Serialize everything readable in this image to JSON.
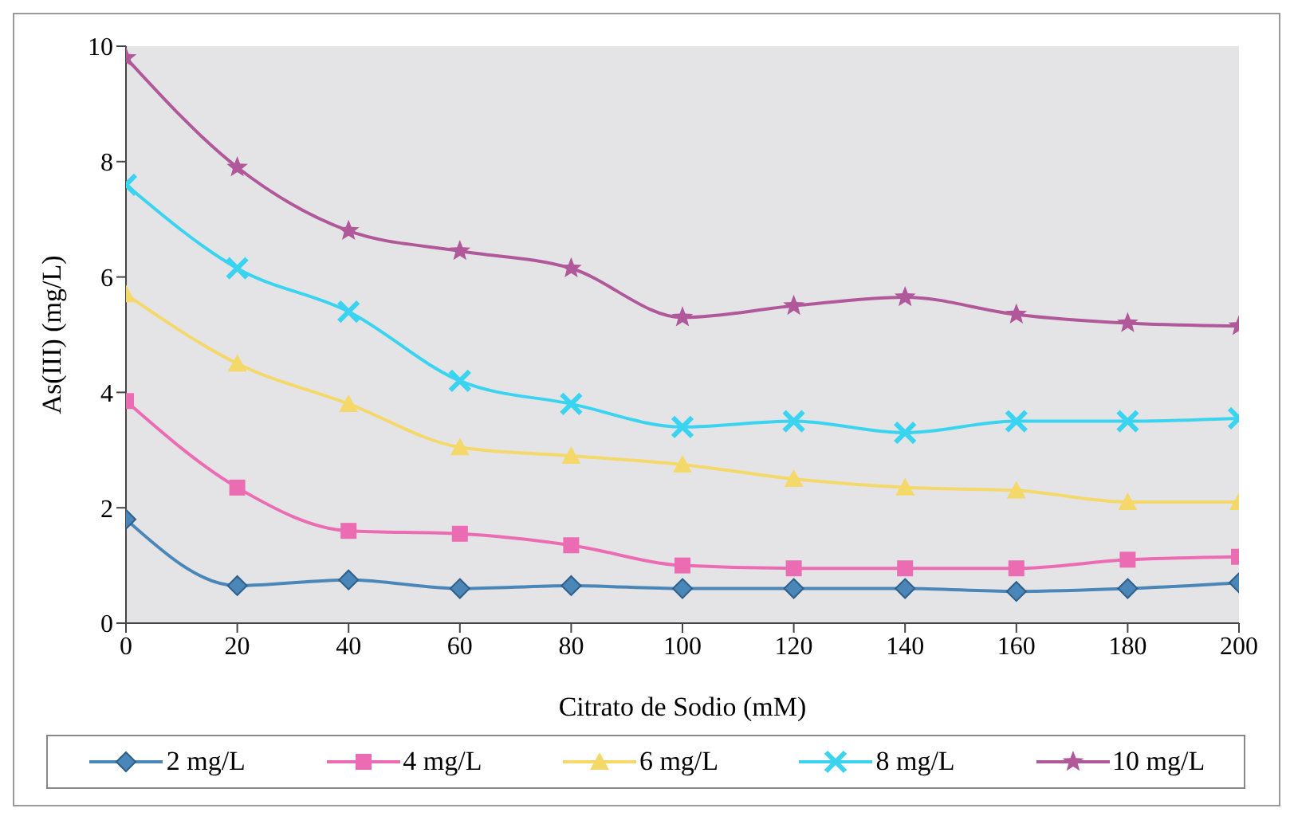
{
  "chart_data": {
    "type": "line",
    "xlabel": "Citrato de Sodio (mM)",
    "ylabel": "As(III) (mg/L)",
    "x": [
      0,
      20,
      40,
      60,
      80,
      100,
      120,
      140,
      160,
      180,
      200
    ],
    "xlim": [
      0,
      200
    ],
    "xticks": [
      0,
      20,
      40,
      60,
      80,
      100,
      120,
      140,
      160,
      180,
      200
    ],
    "ylim": [
      0,
      10
    ],
    "yticks": [
      0,
      2,
      4,
      6,
      8,
      10
    ],
    "grid": false,
    "legend": "bottom",
    "series": [
      {
        "name": "2 mg/L",
        "color": "#4a86b8",
        "marker": "diamond",
        "values": [
          1.8,
          0.65,
          0.75,
          0.6,
          0.65,
          0.6,
          0.6,
          0.6,
          0.55,
          0.6,
          0.7
        ]
      },
      {
        "name": "4 mg/L",
        "color": "#ec6cb4",
        "marker": "square",
        "values": [
          3.85,
          2.35,
          1.6,
          1.55,
          1.35,
          1.0,
          0.95,
          0.95,
          0.95,
          1.1,
          1.15
        ]
      },
      {
        "name": "6 mg/L",
        "color": "#f5d86a",
        "marker": "triangle",
        "values": [
          5.7,
          4.5,
          3.8,
          3.05,
          2.9,
          2.75,
          2.5,
          2.35,
          2.3,
          2.1,
          2.1
        ]
      },
      {
        "name": "8 mg/L",
        "color": "#3ad4f0",
        "marker": "cross",
        "values": [
          7.6,
          6.15,
          5.4,
          4.2,
          3.8,
          3.4,
          3.5,
          3.3,
          3.5,
          3.5,
          3.55
        ]
      },
      {
        "name": "10 mg/L",
        "color": "#b0589a",
        "marker": "star",
        "values": [
          9.8,
          7.9,
          6.8,
          6.45,
          6.15,
          5.3,
          5.5,
          5.65,
          5.35,
          5.2,
          5.15
        ]
      }
    ]
  }
}
